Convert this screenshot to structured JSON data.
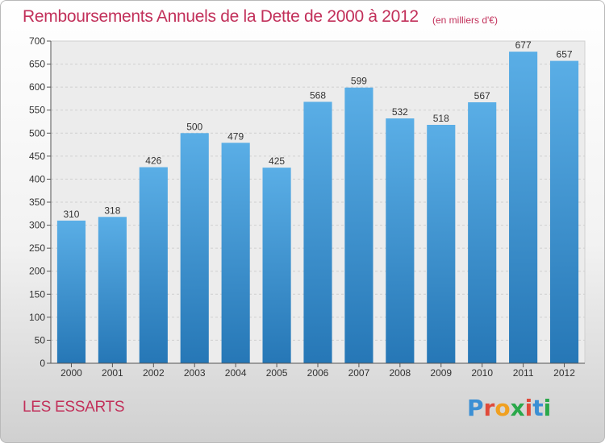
{
  "header": {
    "title": "Remboursements Annuels de la Dette de 2000 à 2012",
    "subtitle": "(en milliers d'€)"
  },
  "footer": {
    "commune": "LES ESSARTS",
    "logo_text": "Proxiti",
    "logo_colors": [
      "#3b8fd4",
      "#e04a3a",
      "#f0a020",
      "#2aa84a",
      "#e04a3a",
      "#3b8fd4",
      "#2aa84a"
    ]
  },
  "chart_data": {
    "type": "bar",
    "title": "Remboursements Annuels de la Dette de 2000 à 2012",
    "subtitle": "(en milliers d'€)",
    "xlabel": "",
    "ylabel": "",
    "categories": [
      "2000",
      "2001",
      "2002",
      "2003",
      "2004",
      "2005",
      "2006",
      "2007",
      "2008",
      "2009",
      "2010",
      "2011",
      "2012"
    ],
    "values": [
      310,
      318,
      426,
      500,
      479,
      425,
      568,
      599,
      532,
      518,
      567,
      677,
      657
    ],
    "ylim": [
      0,
      700
    ],
    "yticks": [
      0,
      50,
      100,
      150,
      200,
      250,
      300,
      350,
      400,
      450,
      500,
      550,
      600,
      650,
      700
    ],
    "grid": true,
    "bar_color_top": "#5aaee6",
    "bar_color_bottom": "#2677b6"
  }
}
